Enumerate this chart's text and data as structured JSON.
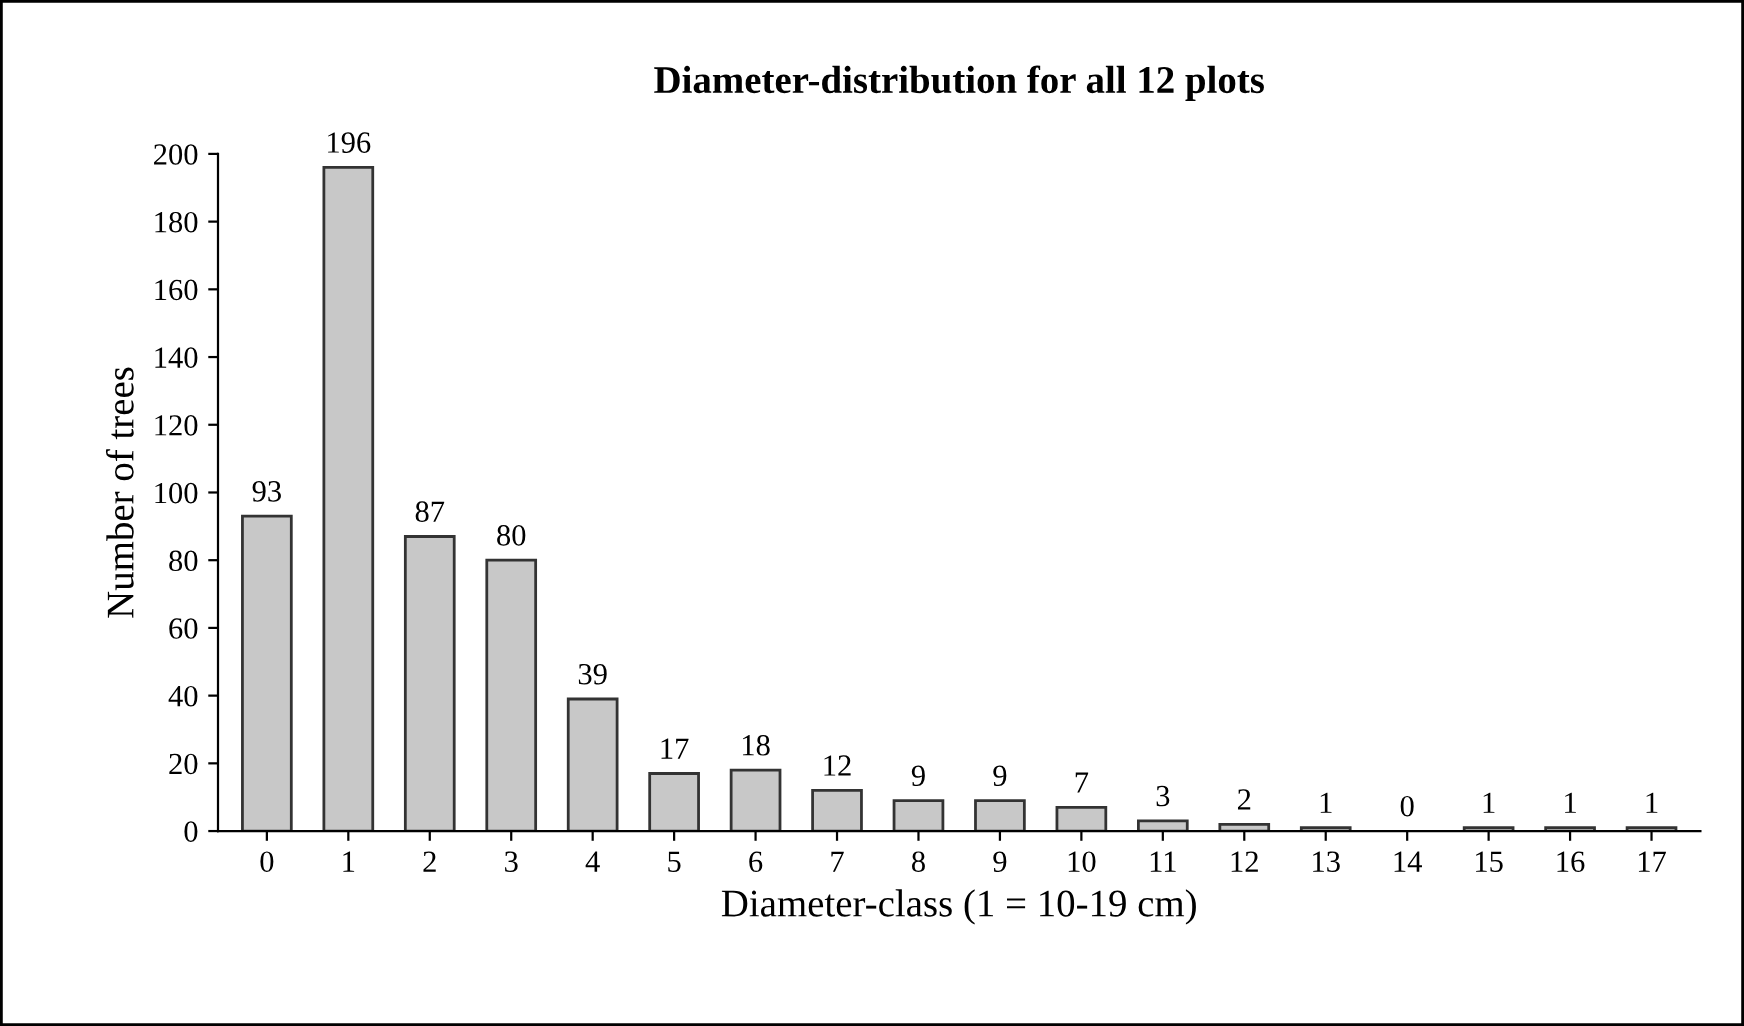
{
  "chart_data": {
    "type": "bar",
    "title": "Diameter-distribution for all 12 plots",
    "xlabel": "Diameter-class (1 = 10-19 cm)",
    "ylabel": "Number of trees",
    "categories": [
      "0",
      "1",
      "2",
      "3",
      "4",
      "5",
      "6",
      "7",
      "8",
      "9",
      "10",
      "11",
      "12",
      "13",
      "14",
      "15",
      "16",
      "17"
    ],
    "values": [
      93,
      196,
      87,
      80,
      39,
      17,
      18,
      12,
      9,
      9,
      7,
      3,
      2,
      1,
      0,
      1,
      1,
      1
    ],
    "color": "#c8c8c8",
    "ylim": [
      0,
      200
    ],
    "yticks": [
      0,
      20,
      40,
      60,
      80,
      100,
      120,
      140,
      160,
      180,
      200
    ],
    "grid": false,
    "data_labels": true
  }
}
